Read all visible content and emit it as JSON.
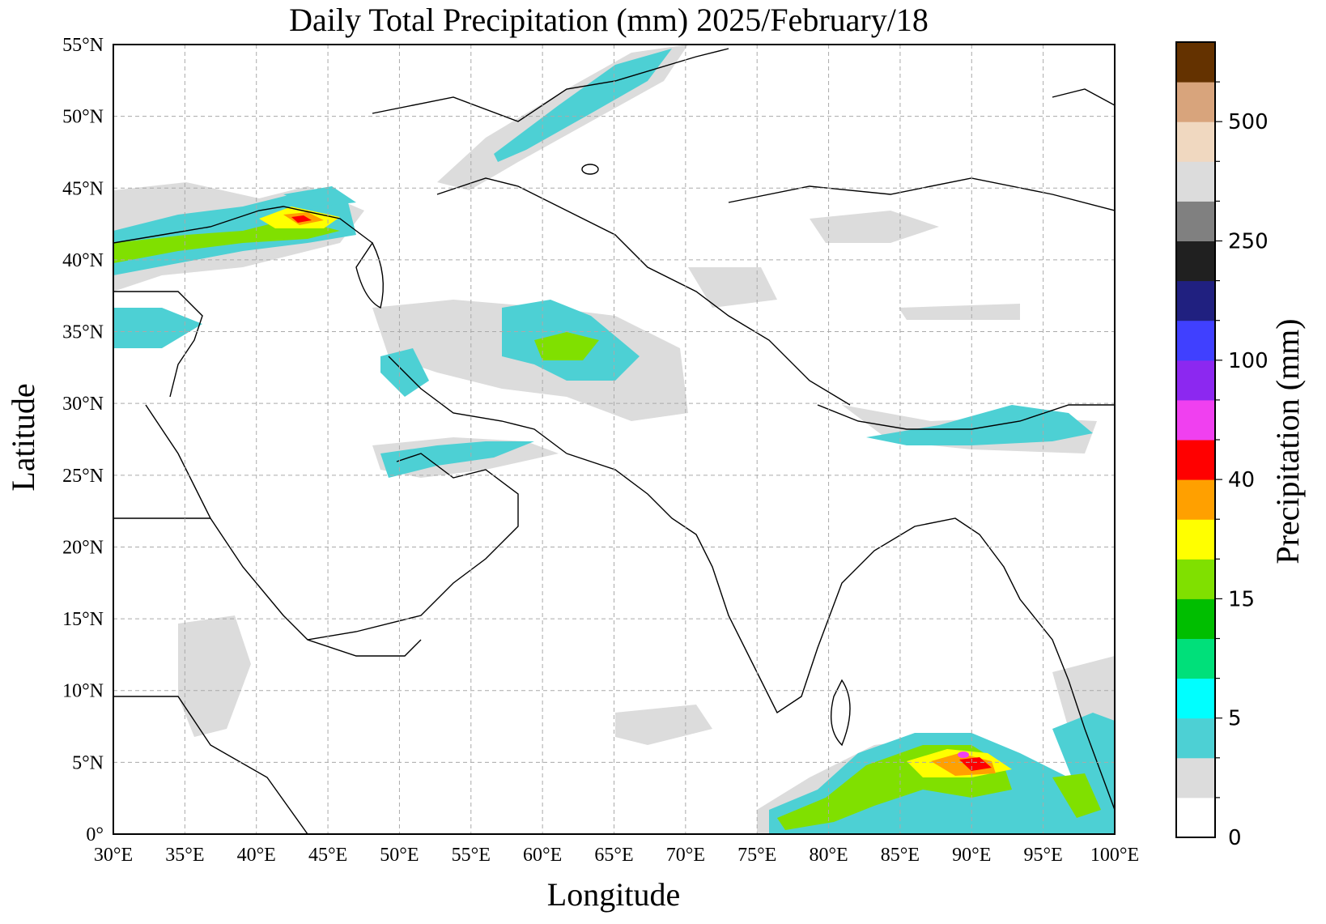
{
  "title": "Daily Total Precipitation (mm)  2025/February/18",
  "xlabel": "Longitude",
  "ylabel": "Latitude",
  "colorbar_label": "Precipitation (mm)",
  "x_ticks": [
    "30°E",
    "35°E",
    "40°E",
    "45°E",
    "50°E",
    "55°E",
    "60°E",
    "65°E",
    "70°E",
    "75°E",
    "80°E",
    "85°E",
    "90°E",
    "95°E",
    "100°E"
  ],
  "y_ticks": [
    "0°",
    "5°N",
    "10°N",
    "15°N",
    "20°N",
    "25°N",
    "30°N",
    "35°N",
    "40°N",
    "45°N",
    "50°N",
    "55°N"
  ],
  "extent": {
    "lon_min": 30,
    "lon_max": 100,
    "lat_min": 0,
    "lat_max": 55
  },
  "grid": true,
  "colorbar": {
    "ticks": [
      "0",
      "5",
      "15",
      "40",
      "100",
      "250",
      "500"
    ],
    "colors": [
      "#ffffff",
      "#dcdcdc",
      "#4dd0d4",
      "#00ffff",
      "#00e07a",
      "#00be00",
      "#80e000",
      "#ffff00",
      "#ffa000",
      "#ff0000",
      "#f040f0",
      "#8c28f0",
      "#4040ff",
      "#202080",
      "#202020",
      "#808080",
      "#dcdcdc",
      "#f0d8c0",
      "#d8a47c",
      "#643200"
    ]
  }
}
